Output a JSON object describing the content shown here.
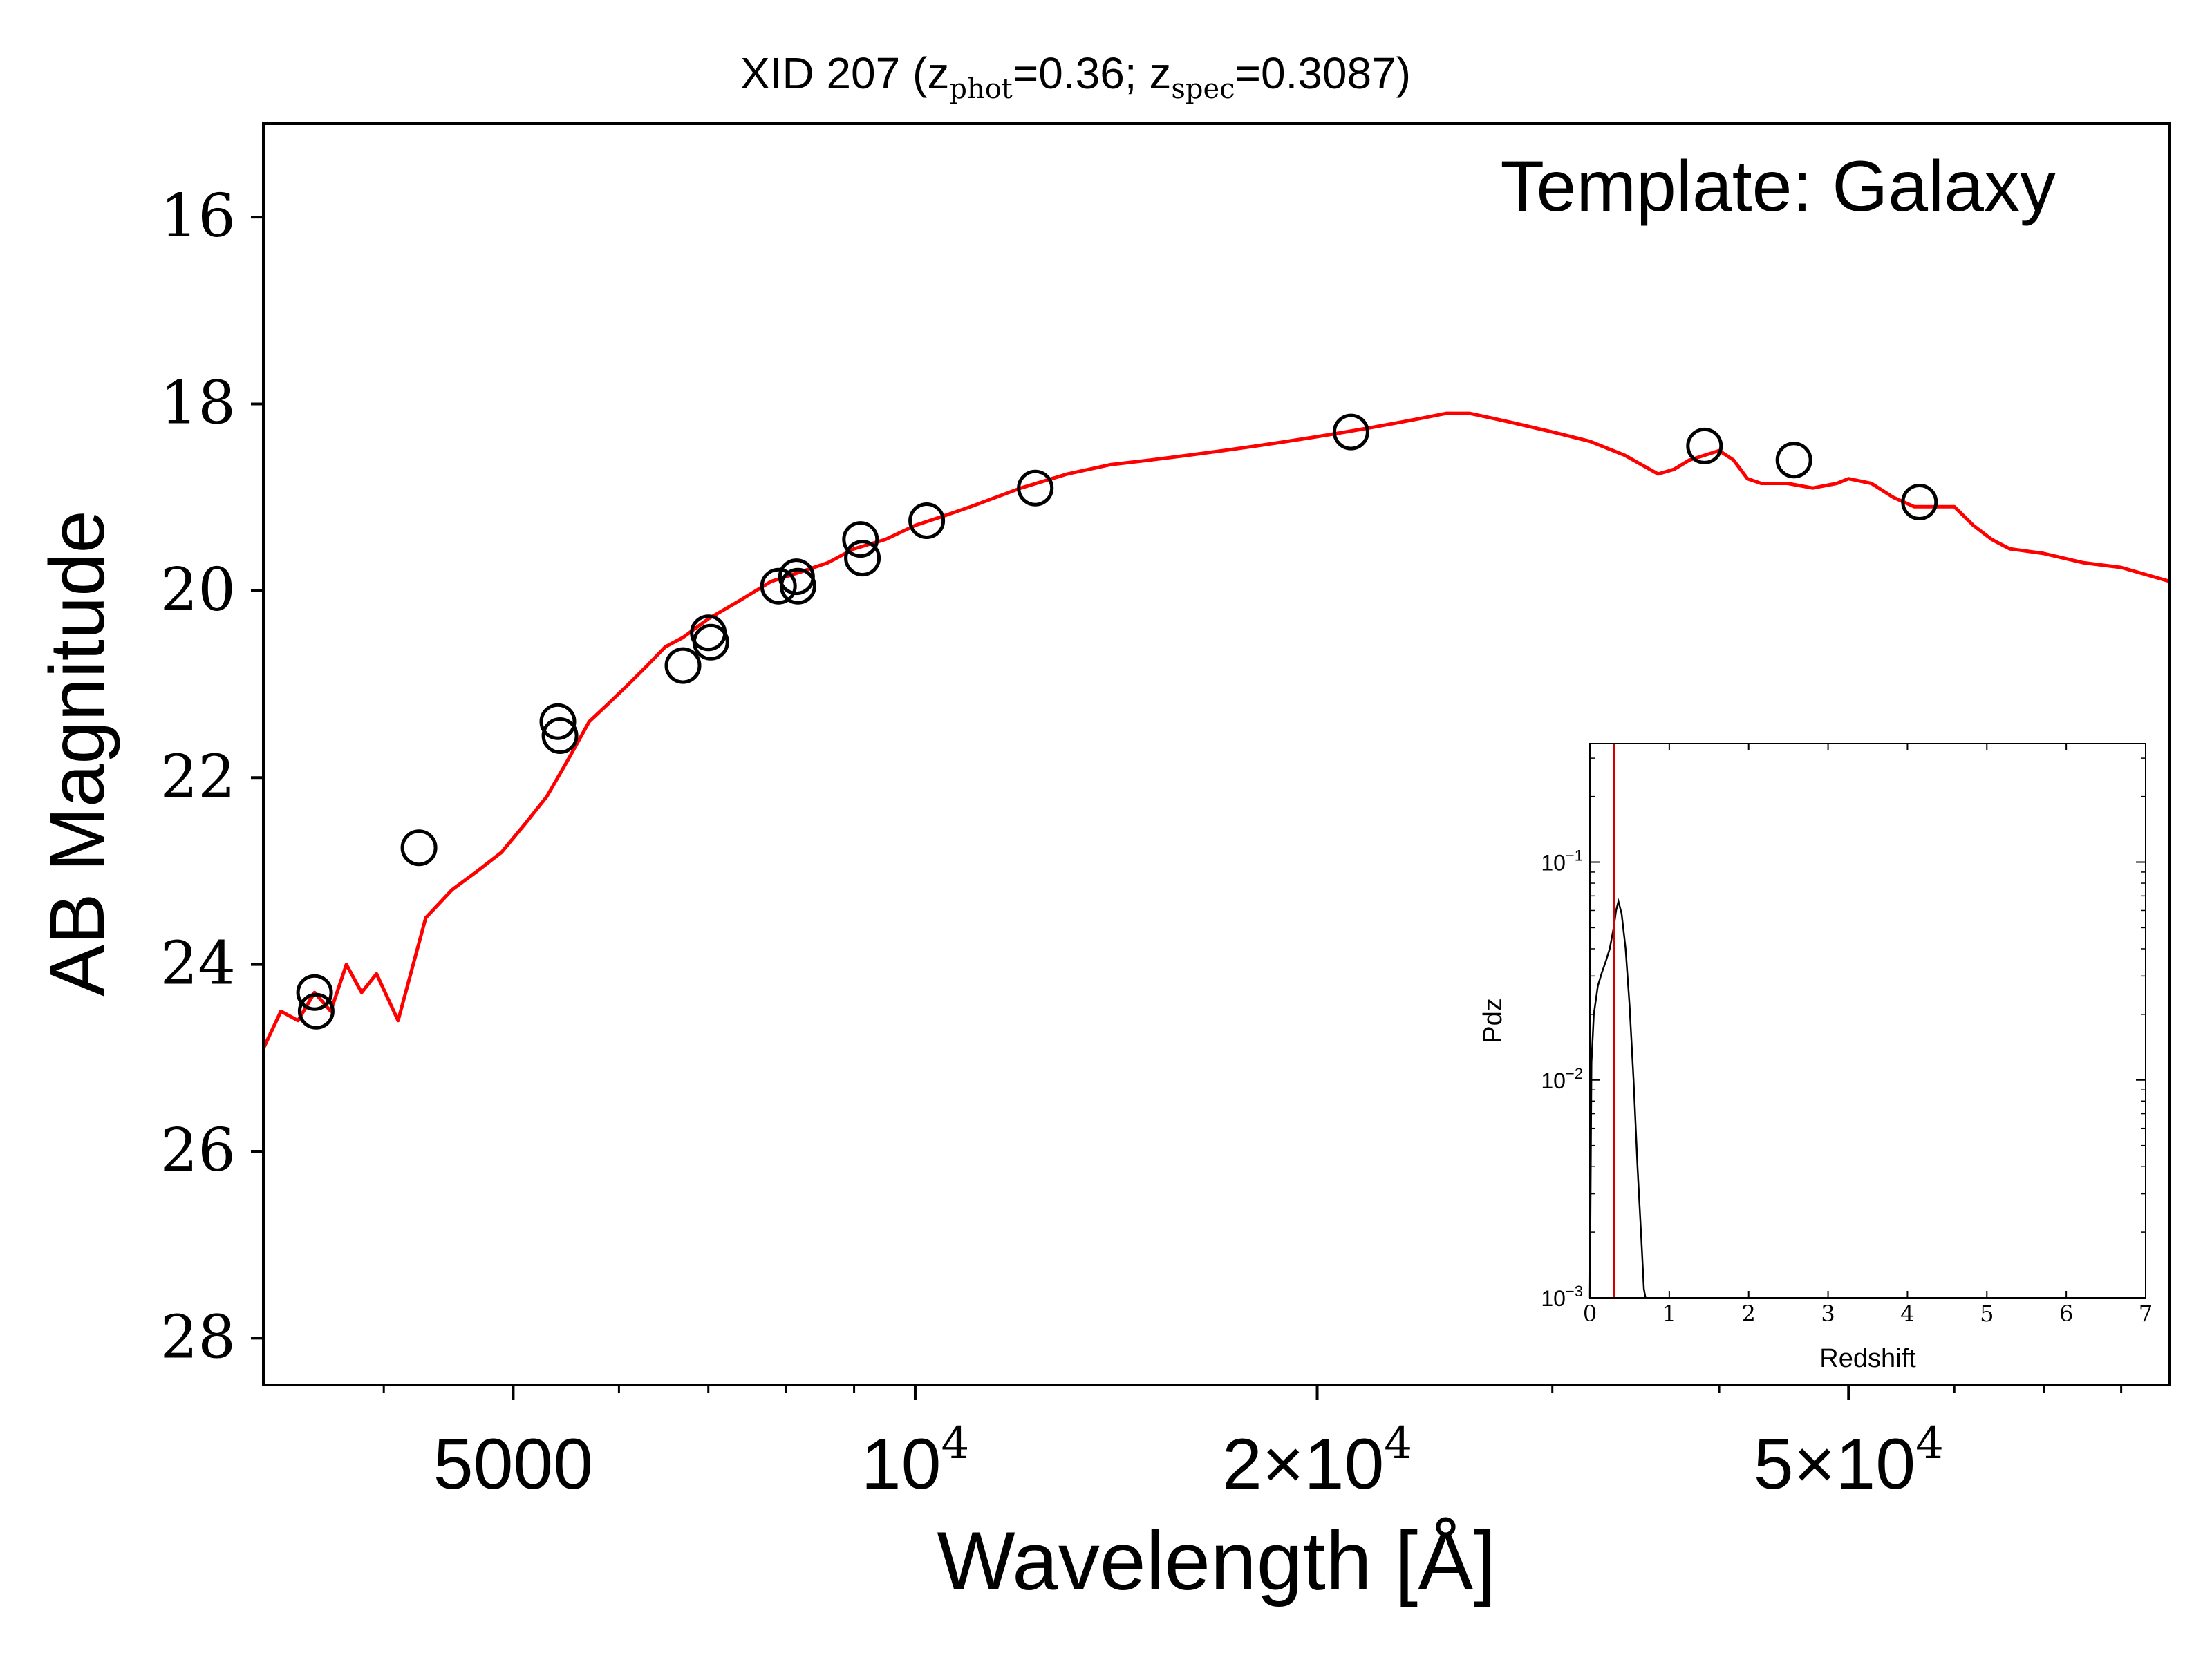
{
  "chart_data": [
    {
      "type": "scatter",
      "title": {
        "prefix": "XID 207 (z",
        "phot_sub": "phot",
        "phot_val": "=0.36; z",
        "spec_sub": "spec",
        "spec_val": "=0.3087)"
      },
      "annotation": "Template: Galaxy",
      "xlabel": "Wavelength [Å]",
      "ylabel": "AB Magnitude",
      "xscale": "log",
      "xlim": [
        3250,
        87000
      ],
      "ylim": [
        28.5,
        15.0
      ],
      "y_inverted": true,
      "xticks": [
        {
          "value": 5000,
          "base": "5000",
          "exp": ""
        },
        {
          "value": 10000,
          "base": "10",
          "exp": "4"
        },
        {
          "value": 20000,
          "base": "2×10",
          "exp": "4"
        },
        {
          "value": 50000,
          "base": "5×10",
          "exp": "4"
        }
      ],
      "yticks": [
        "16",
        "18",
        "20",
        "22",
        "24",
        "26",
        "28"
      ],
      "colors": {
        "template": "#ff0000",
        "points": "#000000"
      },
      "series": [
        {
          "kind": "line",
          "x": [
            3250,
            3350,
            3450,
            3550,
            3650,
            3750,
            3850,
            3950,
            4100,
            4300,
            4500,
            4700,
            4900,
            5100,
            5300,
            5500,
            5700,
            5900,
            6100,
            6300,
            6500,
            6700,
            7000,
            7400,
            7800,
            8200,
            8600,
            9000,
            9500,
            10000,
            10500,
            11000,
            12000,
            13000,
            14000,
            15000,
            16000,
            17000,
            18000,
            19000,
            20000,
            21000,
            22000,
            23000,
            24000,
            25000,
            26000,
            27000,
            28000,
            29000,
            30000,
            32000,
            34000,
            36000,
            37000,
            38000,
            39000,
            40000,
            41000,
            42000,
            43000,
            45000,
            47000,
            49000,
            50000,
            52000,
            54000,
            56000,
            58000,
            60000,
            62000,
            64000,
            66000,
            70000,
            75000,
            80000,
            87000
          ],
          "y": [
            24.9,
            24.5,
            24.6,
            24.3,
            24.5,
            24.0,
            24.3,
            24.1,
            24.6,
            23.5,
            23.2,
            23.0,
            22.8,
            22.5,
            22.2,
            21.8,
            21.4,
            21.2,
            21.0,
            20.8,
            20.6,
            20.5,
            20.3,
            20.1,
            19.9,
            19.8,
            19.7,
            19.55,
            19.45,
            19.3,
            19.2,
            19.1,
            18.9,
            18.75,
            18.65,
            18.6,
            18.55,
            18.5,
            18.45,
            18.4,
            18.35,
            18.3,
            18.25,
            18.2,
            18.15,
            18.1,
            18.1,
            18.15,
            18.2,
            18.25,
            18.3,
            18.4,
            18.55,
            18.75,
            18.7,
            18.6,
            18.55,
            18.5,
            18.6,
            18.8,
            18.85,
            18.85,
            18.9,
            18.85,
            18.8,
            18.85,
            19.0,
            19.1,
            19.1,
            19.1,
            19.3,
            19.45,
            19.55,
            19.6,
            19.7,
            19.75,
            19.9
          ]
        },
        {
          "kind": "scatter",
          "x": [
            3550,
            3560,
            4250,
            5400,
            5420,
            6700,
            7000,
            7030,
            7900,
            8150,
            8170,
            9100,
            9130,
            10200,
            12300,
            21200,
            39000,
            45500,
            56500
          ],
          "y": [
            24.3,
            24.5,
            22.75,
            21.4,
            21.55,
            20.8,
            20.45,
            20.55,
            19.95,
            19.85,
            19.95,
            19.45,
            19.65,
            19.25,
            18.9,
            18.3,
            18.45,
            18.6,
            19.05
          ]
        }
      ]
    },
    {
      "type": "line",
      "xlabel": "Redshift",
      "ylabel": "Pdz",
      "yscale": "log",
      "xlim": [
        0,
        7
      ],
      "ylim": [
        0.001,
        0.35
      ],
      "xticks": [
        "0",
        "1",
        "2",
        "3",
        "4",
        "5",
        "6",
        "7"
      ],
      "yticks": [
        {
          "value": 0.1,
          "base": "10",
          "exp": "−1"
        },
        {
          "value": 0.01,
          "base": "10",
          "exp": "−2"
        },
        {
          "value": 0.001,
          "base": "10",
          "exp": "−3"
        }
      ],
      "colors": {
        "curve": "#000000",
        "marker": "#d40000"
      },
      "marker_x": 0.3087,
      "series": [
        {
          "x": [
            0.0,
            0.02,
            0.05,
            0.1,
            0.15,
            0.2,
            0.25,
            0.3,
            0.33,
            0.36,
            0.4,
            0.45,
            0.5,
            0.55,
            0.6,
            0.65,
            0.68,
            0.7
          ],
          "y": [
            0.001,
            0.012,
            0.02,
            0.027,
            0.031,
            0.035,
            0.04,
            0.05,
            0.06,
            0.066,
            0.058,
            0.04,
            0.022,
            0.01,
            0.004,
            0.0018,
            0.0011,
            0.001
          ]
        }
      ]
    }
  ]
}
